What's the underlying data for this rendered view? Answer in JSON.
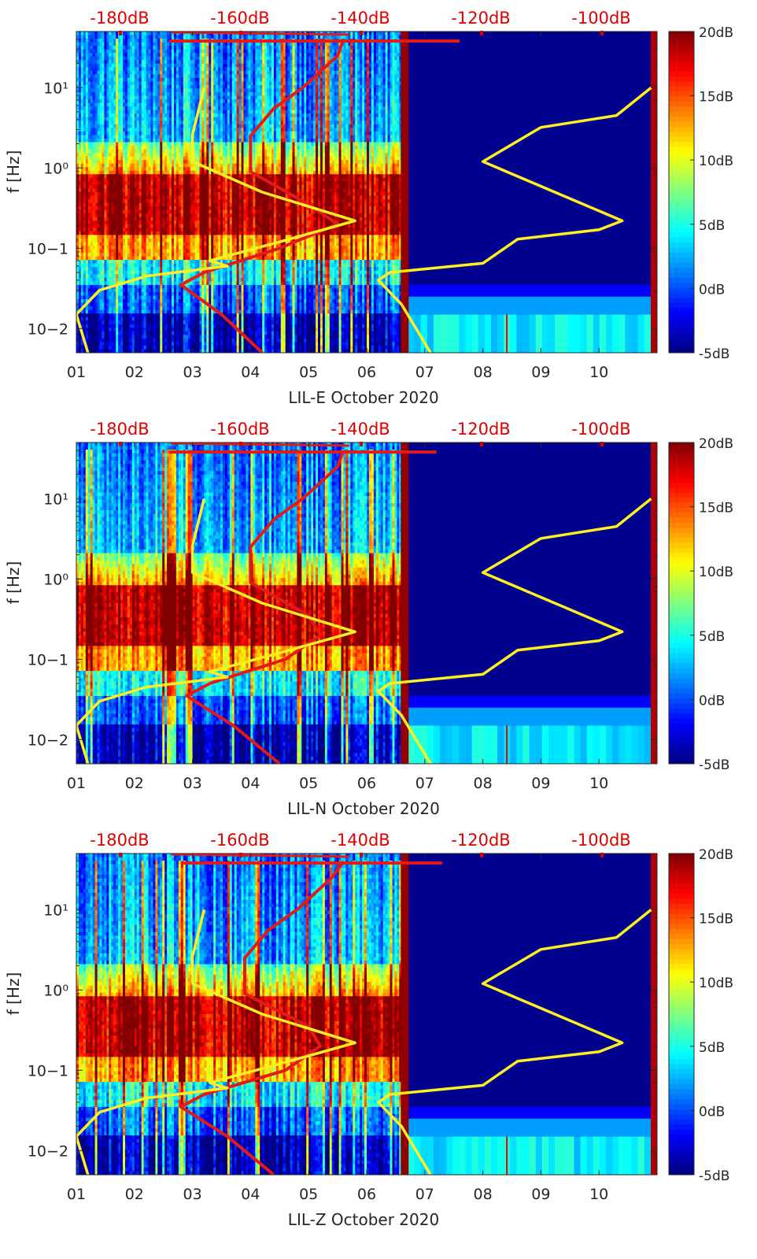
{
  "chart_data": [
    {
      "type": "heatmap",
      "station": "LIL-E",
      "xlabel": "LIL-E October 2020",
      "ylabel": "f [Hz]",
      "x_ticks": [
        "01",
        "02",
        "03",
        "04",
        "05",
        "06",
        "07",
        "08",
        "09",
        "10"
      ],
      "y_ticks": [
        "10−2",
        "10−1",
        "10⁰",
        "10¹"
      ],
      "y_range_hz": [
        0.005,
        50
      ],
      "top_ticks": [
        "-180dB",
        "-160dB",
        "-140dB",
        "-120dB",
        "-100dB"
      ],
      "colorbar_labels": [
        "20dB",
        "15dB",
        "10dB",
        "5dB",
        "0dB",
        "-5dB"
      ],
      "color_range_db": [
        -5,
        20
      ],
      "data_end_day": 6.6,
      "noise_model_yellow_day": [
        [
          1.2,
          0.005
        ],
        [
          1.0,
          0.015
        ],
        [
          1.4,
          0.03
        ],
        [
          2.2,
          0.045
        ],
        [
          3.6,
          0.06
        ],
        [
          3.3,
          0.07
        ],
        [
          4.5,
          0.12
        ],
        [
          5.8,
          0.22
        ],
        [
          4.2,
          0.5
        ],
        [
          3.0,
          1.2
        ],
        [
          3.0,
          2.6
        ],
        [
          3.2,
          10
        ]
      ],
      "noise_model_yellow_right_day": [
        [
          7.1,
          0.005
        ],
        [
          6.6,
          0.02
        ],
        [
          6.2,
          0.04
        ],
        [
          6.4,
          0.05
        ],
        [
          8.0,
          0.065
        ],
        [
          8.6,
          0.13
        ],
        [
          10.0,
          0.17
        ],
        [
          10.4,
          0.22
        ],
        [
          8.0,
          1.2
        ],
        [
          9.0,
          3.2
        ],
        [
          10.3,
          4.5
        ],
        [
          10.9,
          10
        ]
      ],
      "psd_red_day": [
        [
          4.2,
          0.005
        ],
        [
          3.5,
          0.015
        ],
        [
          2.8,
          0.035
        ],
        [
          3.2,
          0.05
        ],
        [
          4.5,
          0.1
        ],
        [
          5.5,
          0.2
        ],
        [
          5.0,
          0.35
        ],
        [
          4.0,
          0.9
        ],
        [
          4.0,
          2.5
        ],
        [
          4.4,
          5.5
        ],
        [
          4.9,
          10
        ],
        [
          5.5,
          25
        ],
        [
          5.6,
          40
        ]
      ],
      "psd_red_bar_day": [
        2.6,
        7.6
      ]
    },
    {
      "type": "heatmap",
      "station": "LIL-N",
      "xlabel": "LIL-N October 2020",
      "ylabel": "f [Hz]",
      "x_ticks": [
        "01",
        "02",
        "03",
        "04",
        "05",
        "06",
        "07",
        "08",
        "09",
        "10"
      ],
      "y_ticks": [
        "10−2",
        "10−1",
        "10⁰",
        "10¹"
      ],
      "y_range_hz": [
        0.005,
        50
      ],
      "top_ticks": [
        "-180dB",
        "-160dB",
        "-140dB",
        "-120dB",
        "-100dB"
      ],
      "colorbar_labels": [
        "20dB",
        "15dB",
        "10dB",
        "5dB",
        "0dB",
        "-5dB"
      ],
      "color_range_db": [
        -5,
        20
      ],
      "data_end_day": 6.6,
      "noise_model_yellow_day": [
        [
          1.2,
          0.005
        ],
        [
          1.0,
          0.015
        ],
        [
          1.4,
          0.03
        ],
        [
          2.2,
          0.045
        ],
        [
          3.6,
          0.06
        ],
        [
          3.3,
          0.07
        ],
        [
          4.5,
          0.12
        ],
        [
          5.8,
          0.22
        ],
        [
          4.2,
          0.5
        ],
        [
          3.0,
          1.2
        ],
        [
          3.0,
          2.6
        ],
        [
          3.2,
          10
        ]
      ],
      "noise_model_yellow_right_day": [
        [
          7.1,
          0.005
        ],
        [
          6.6,
          0.02
        ],
        [
          6.2,
          0.04
        ],
        [
          6.4,
          0.05
        ],
        [
          8.0,
          0.065
        ],
        [
          8.6,
          0.13
        ],
        [
          10.0,
          0.17
        ],
        [
          10.4,
          0.22
        ],
        [
          8.0,
          1.2
        ],
        [
          9.0,
          3.2
        ],
        [
          10.3,
          4.5
        ],
        [
          10.9,
          10
        ]
      ],
      "psd_red_day": [
        [
          4.5,
          0.005
        ],
        [
          3.7,
          0.015
        ],
        [
          2.9,
          0.035
        ],
        [
          3.3,
          0.05
        ],
        [
          4.6,
          0.1
        ],
        [
          5.2,
          0.2
        ],
        [
          5.0,
          0.35
        ],
        [
          4.0,
          0.9
        ],
        [
          4.0,
          2.5
        ],
        [
          4.4,
          5.5
        ],
        [
          4.9,
          10
        ],
        [
          5.5,
          25
        ],
        [
          5.6,
          40
        ]
      ],
      "psd_red_bar_day": [
        2.6,
        7.2
      ]
    },
    {
      "type": "heatmap",
      "station": "LIL-Z",
      "xlabel": "LIL-Z October 2020",
      "ylabel": "f [Hz]",
      "x_ticks": [
        "01",
        "02",
        "03",
        "04",
        "05",
        "06",
        "07",
        "08",
        "09",
        "10"
      ],
      "y_ticks": [
        "10−2",
        "10−1",
        "10⁰",
        "10¹"
      ],
      "y_range_hz": [
        0.005,
        50
      ],
      "top_ticks": [
        "-180dB",
        "-160dB",
        "-140dB",
        "-120dB",
        "-100dB"
      ],
      "colorbar_labels": [
        "20dB",
        "15dB",
        "10dB",
        "5dB",
        "0dB",
        "-5dB"
      ],
      "color_range_db": [
        -5,
        20
      ],
      "data_end_day": 6.6,
      "noise_model_yellow_day": [
        [
          1.2,
          0.005
        ],
        [
          1.0,
          0.015
        ],
        [
          1.4,
          0.03
        ],
        [
          2.2,
          0.045
        ],
        [
          3.6,
          0.06
        ],
        [
          3.3,
          0.07
        ],
        [
          4.5,
          0.12
        ],
        [
          5.8,
          0.22
        ],
        [
          4.2,
          0.5
        ],
        [
          3.0,
          1.2
        ],
        [
          3.0,
          2.6
        ],
        [
          3.2,
          10
        ]
      ],
      "noise_model_yellow_right_day": [
        [
          7.1,
          0.005
        ],
        [
          6.6,
          0.02
        ],
        [
          6.2,
          0.04
        ],
        [
          6.4,
          0.05
        ],
        [
          8.0,
          0.065
        ],
        [
          8.6,
          0.13
        ],
        [
          10.0,
          0.17
        ],
        [
          10.4,
          0.22
        ],
        [
          8.0,
          1.2
        ],
        [
          9.0,
          3.2
        ],
        [
          10.3,
          4.5
        ],
        [
          10.9,
          10
        ]
      ],
      "psd_red_day": [
        [
          4.4,
          0.005
        ],
        [
          3.6,
          0.015
        ],
        [
          2.8,
          0.035
        ],
        [
          3.2,
          0.05
        ],
        [
          4.6,
          0.1
        ],
        [
          5.2,
          0.2
        ],
        [
          5.0,
          0.35
        ],
        [
          3.9,
          0.9
        ],
        [
          3.9,
          2.5
        ],
        [
          4.3,
          5.5
        ],
        [
          4.8,
          10
        ],
        [
          5.4,
          25
        ],
        [
          5.6,
          40
        ]
      ],
      "psd_red_bar_day": [
        2.8,
        7.3
      ]
    }
  ],
  "colors": {
    "axis": "#262626",
    "top_label": "#dd0000",
    "red_curve": "#e41a1a",
    "yellow_curve": "#ffee22",
    "background_blue": "#00008f"
  }
}
